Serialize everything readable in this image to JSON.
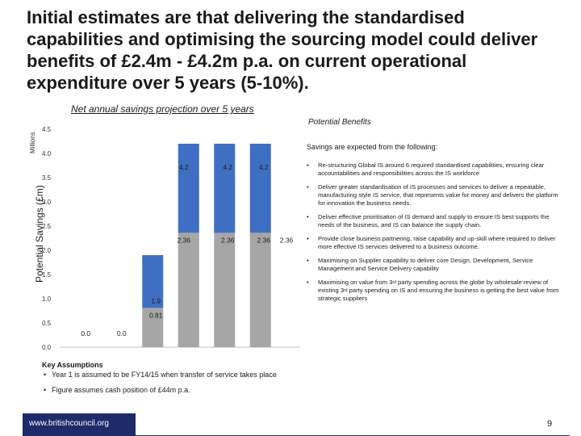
{
  "slide": {
    "title": "Initial estimates are that delivering the standardised capabilities and optimising the sourcing model could deliver benefits of £2.4m - £4.2m p.a. on current operational expenditure over 5 years (5-10%).",
    "page_number": "9",
    "footer_url": "www.britishcouncil.org"
  },
  "chart_data": {
    "type": "bar",
    "title": "Net annual savings projection over 5 years",
    "ylabel": "Potential Savings (£m)",
    "unit_label": "Millions",
    "ylim": [
      0,
      4.5
    ],
    "yticks": [
      "4.5",
      "4.0",
      "3.5",
      "3.0",
      "2.5",
      "2.0",
      "1.5",
      "1.0",
      "0.5",
      "0.0"
    ],
    "categories": [
      "",
      "",
      "",
      "",
      "",
      ""
    ],
    "series": [
      {
        "values": [
          0,
          0,
          0.81,
          2.36,
          2.36,
          2.36
        ],
        "labels": [
          "0.0",
          "0.0",
          "0.81",
          "2.36",
          "2.36",
          "2.36"
        ],
        "color": "#a6a6a6"
      },
      {
        "values": [
          0,
          0,
          1.9,
          4.2,
          4.2,
          4.2
        ],
        "labels": [
          "",
          "",
          "1.9",
          "4.2",
          "4.2",
          "4.2"
        ],
        "color": "#3f6fc2"
      }
    ],
    "extra_label": "2.36",
    "grid": false,
    "legend": "none"
  },
  "right_panel": {
    "title": "Potential Benefits",
    "intro": "Savings are expected from the following:",
    "benefits": [
      "Re-structuring Global IS around 6 required standardised capabilities, ensuring clear accountabilities and responsibilities across the IS workforce",
      "Deliver greater standardisation of IS processes and services to deliver a repeatable, manufacturing style IS service, that represents value for money and delivers the platform for innovation the business needs.",
      "Deliver effective prioritisation of IS demand and supply to ensure IS best supports the needs of the business, and IS can balance the supply chain.",
      "Provide close business partnering, raise capability and up-skill where required to deliver more effective IS services delivered to a business outcome.",
      "Maximising on Supplier capability to deliver core Design, Development, Service Management and Service Delivery capability"
    ],
    "last_benefit_a": "Maximising on value from 3",
    "last_benefit_sup1": "rd",
    "last_benefit_b": " party spending across the globe by wholesale review of existing 3",
    "last_benefit_sup2": "rd",
    "last_benefit_c": " party spending on IS and ensuring the business is getting the best value from strategic suppliers",
    "bullet": "•"
  },
  "key_assumptions": {
    "title": "Key Assumptions",
    "items": [
      "Year 1 is assumed to be FY14/15 when transfer of service takes place",
      "Figure assumes cash position of £44m p.a."
    ]
  },
  "colors": {
    "bar_base": "#a6a6a6",
    "bar_top": "#3f6fc2",
    "footer": "#1e2a6a"
  }
}
